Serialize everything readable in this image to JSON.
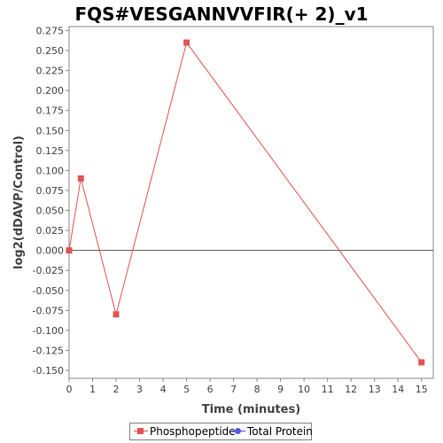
{
  "chart_data": {
    "type": "line",
    "title": "FQS#VESGANNVVFIR(+ 2)_v1",
    "xlabel": "Time (minutes)",
    "ylabel": "log2(dDAVP/Control)",
    "xlim": [
      0,
      15.5
    ],
    "ylim": [
      -0.16,
      0.28
    ],
    "x_ticks": [
      "0",
      "1",
      "2",
      "3",
      "4",
      "5",
      "6",
      "7",
      "8",
      "9",
      "10",
      "11",
      "12",
      "13",
      "14",
      "15"
    ],
    "y_ticks": [
      "0.275",
      "0.250",
      "0.225",
      "0.200",
      "0.175",
      "0.150",
      "0.125",
      "0.100",
      "0.075",
      "0.050",
      "0.025",
      "0.000",
      "-0.025",
      "-0.050",
      "-0.075",
      "-0.100",
      "-0.125",
      "-0.150"
    ],
    "grid": false,
    "legend_position": "bottom",
    "series": [
      {
        "name": "Phosphopeptide",
        "color": "#e05555",
        "marker": "square",
        "points": [
          [
            0,
            0.0
          ],
          [
            0.5,
            0.09
          ],
          [
            2,
            -0.08
          ],
          [
            5,
            0.26
          ],
          [
            15,
            -0.14
          ]
        ]
      },
      {
        "name": "Total Protein",
        "color": "#5555ee",
        "marker": "circle",
        "points": []
      }
    ]
  }
}
